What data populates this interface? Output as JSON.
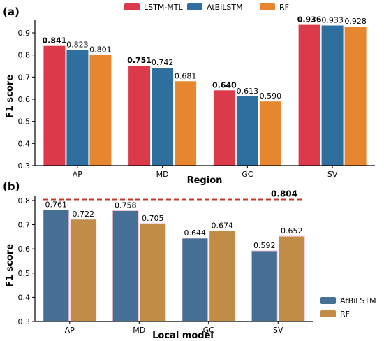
{
  "chart_data": [
    {
      "type": "bar",
      "panel_label": "(a)",
      "categories": [
        "AP",
        "MD",
        "GC",
        "SV"
      ],
      "series": [
        {
          "name": "LSTM-MTL",
          "values": [
            0.841,
            0.751,
            0.64,
            0.936
          ],
          "labels": [
            "0.841",
            "0.751",
            "0.640",
            "0.936"
          ],
          "color": "#dc3a4b",
          "bold_labels": true
        },
        {
          "name": "AtBiLSTM",
          "values": [
            0.823,
            0.742,
            0.613,
            0.933
          ],
          "labels": [
            "0.823",
            "0.742",
            "0.613",
            "0.933"
          ],
          "color": "#2f6f9f",
          "bold_labels": false
        },
        {
          "name": "RF",
          "values": [
            0.801,
            0.681,
            0.59,
            0.928
          ],
          "labels": [
            "0.801",
            "0.681",
            "0.590",
            "0.928"
          ],
          "color": "#e6862e",
          "bold_labels": false
        }
      ],
      "xlabel": "Region",
      "ylabel": "F1 score",
      "ylim": [
        0.3,
        0.96
      ],
      "yticks": [
        0.3,
        0.4,
        0.5,
        0.6,
        0.7,
        0.8,
        0.9
      ],
      "ytick_labels": [
        "0.3",
        "0.4",
        "0.5",
        "0.6",
        "0.7",
        "0.8",
        "0.9"
      ],
      "legend_position": "top-center",
      "grid": false
    },
    {
      "type": "bar",
      "panel_label": "(b)",
      "categories": [
        "AP",
        "MD",
        "GC",
        "SV"
      ],
      "series": [
        {
          "name": "AtBiLSTM",
          "values": [
            0.761,
            0.758,
            0.644,
            0.592
          ],
          "labels": [
            "0.761",
            "0.758",
            "0.644",
            "0.592"
          ],
          "color": "#466f96"
        },
        {
          "name": "RF",
          "values": [
            0.722,
            0.705,
            0.674,
            0.652
          ],
          "labels": [
            "0.722",
            "0.705",
            "0.674",
            "0.652"
          ],
          "color": "#c18c45"
        }
      ],
      "reference_line": {
        "value": 0.804,
        "label": "0.804",
        "color": "#c0392b"
      },
      "xlabel": "Local model",
      "ylabel": "F1 score",
      "ylim": [
        0.3,
        0.82
      ],
      "yticks": [
        0.3,
        0.4,
        0.5,
        0.6,
        0.7,
        0.8
      ],
      "ytick_labels": [
        "0.3",
        "0.4",
        "0.5",
        "0.6",
        "0.7",
        "0.8"
      ],
      "legend_position": "bottom-right",
      "grid": false
    }
  ]
}
